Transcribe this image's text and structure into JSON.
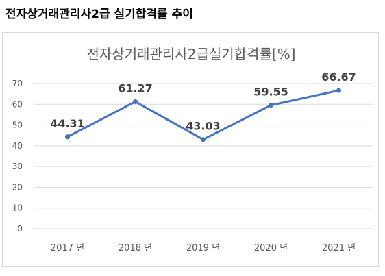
{
  "heading": "전자상거래관리사2급 실기합격률 추이",
  "chart_data": {
    "type": "line",
    "title": "전자상거래관리사2급실기합격률[%]",
    "categories": [
      "2017 년",
      "2018 년",
      "2019 년",
      "2020 년",
      "2021 년"
    ],
    "series": [
      {
        "values": [
          44.31,
          61.27,
          43.03,
          59.55,
          66.67
        ],
        "color": "#4472c4"
      }
    ],
    "ylim": [
      0,
      70
    ],
    "yticks": [
      0,
      10,
      20,
      30,
      40,
      50,
      60,
      70
    ],
    "grid": true,
    "data_labels": [
      "44.31",
      "61.27",
      "43.03",
      "59.55",
      "66.67"
    ]
  }
}
